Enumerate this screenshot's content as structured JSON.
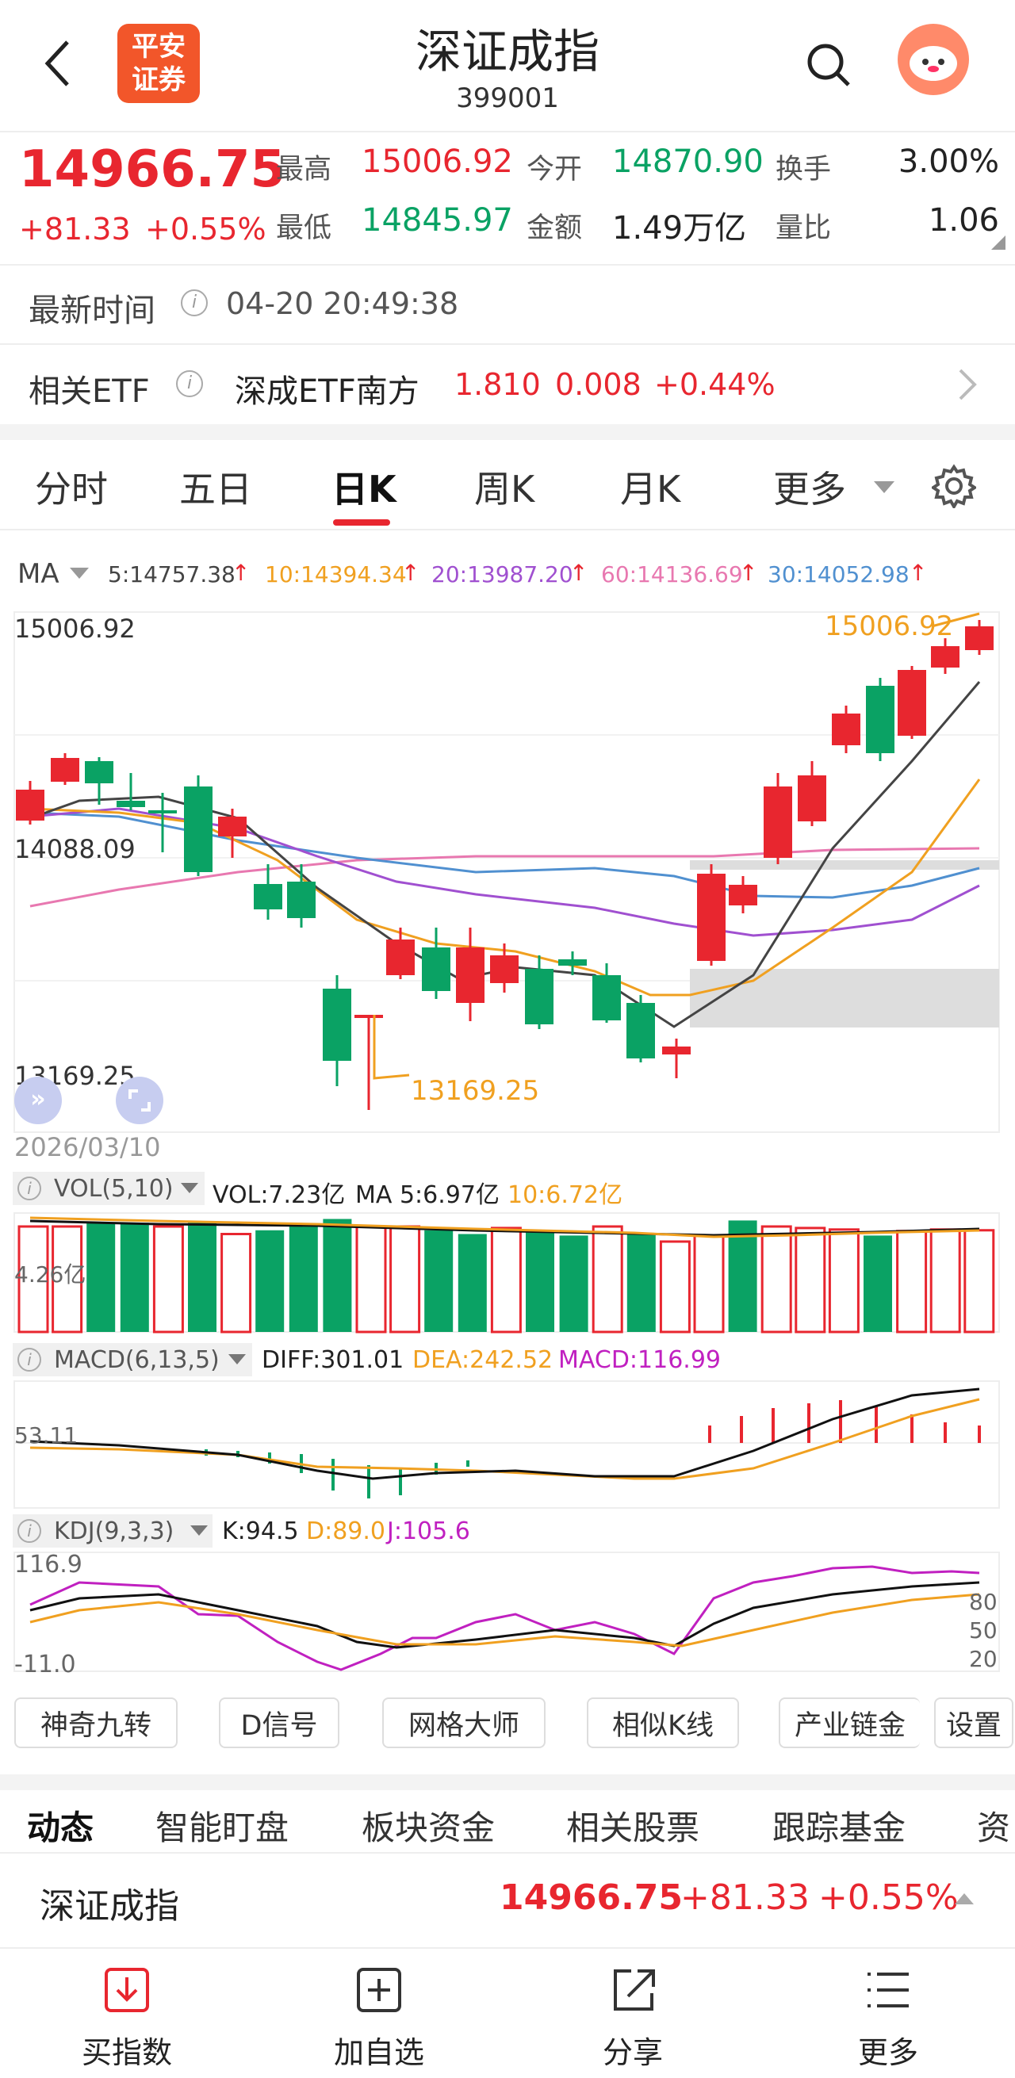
{
  "header": {
    "logo_text": "平安\n证券",
    "title": "深证成指",
    "code": "399001",
    "back_icon": "back-arrow-icon",
    "search_icon": "search-icon",
    "avatar_icon": "mascot-avatar"
  },
  "quote": {
    "price": "14966.75",
    "change": "+81.33",
    "change_pct": "+0.55%",
    "high_label": "最高",
    "high": "15006.92",
    "open_label": "今开",
    "open": "14870.90",
    "turnover_label": "换手",
    "turnover": "3.00%",
    "low_label": "最低",
    "low": "14845.97",
    "amount_label": "金额",
    "amount": "1.49万亿",
    "volratio_label": "量比",
    "volratio": "1.06"
  },
  "time_row": {
    "label": "最新时间",
    "value": "04-20 20:49:38"
  },
  "etf_row": {
    "label": "相关ETF",
    "name": "深成ETF南方",
    "price": "1.810",
    "change": "0.008",
    "pct": "+0.44%"
  },
  "tabs": [
    "分时",
    "五日",
    "日K",
    "周K",
    "月K",
    "更多"
  ],
  "active_tab": "日K",
  "ma_legend": {
    "label": "MA",
    "ma5": "5:14757.38",
    "ma10": "10:14394.34",
    "ma20": "20:13987.20",
    "ma60": "60:14136.69",
    "ma30": "30:14052.98",
    "colors": {
      "ma5": "#444444",
      "ma10": "#f0a020",
      "ma20": "#a050d0",
      "ma60": "#e878b0",
      "ma30": "#5090d0"
    }
  },
  "kchart": {
    "top_label": "15006.92",
    "mid_label": "14088.09",
    "bot_label": "13169.25",
    "max_marker": "15006.92",
    "min_marker": "13169.25",
    "date_label": "2026/03/10"
  },
  "vol": {
    "label": "VOL(5,10)",
    "value": "VOL:7.23亿",
    "ma5": "MA 5:6.97亿",
    "ma10": "10:6.72亿",
    "axis": "4.26亿"
  },
  "macd": {
    "label": "MACD(6,13,5)",
    "diff": "DIFF:301.01",
    "dea": "DEA:242.52",
    "macd": "MACD:116.99",
    "axis": "53.11"
  },
  "kdj": {
    "label": "KDJ(9,3,3)",
    "k": "K:94.5",
    "d": "D:89.0",
    "j": "J:105.6",
    "axis_top": "116.9",
    "axis_bot": "-11.0",
    "levels": [
      "80",
      "50",
      "20"
    ]
  },
  "tool_buttons": [
    "神奇九转",
    "D信号",
    "网格大师",
    "相似K线",
    "产业链金",
    "设置"
  ],
  "section_tabs": [
    "动态",
    "智能盯盘",
    "板块资金",
    "相关股票",
    "跟踪基金",
    "资"
  ],
  "footer_quote": {
    "name": "深证成指",
    "price": "14966.75",
    "change": "+81.33",
    "pct": "+0.55%"
  },
  "bottom_nav": [
    {
      "label": "买指数",
      "icon": "download-icon"
    },
    {
      "label": "加自选",
      "icon": "add-icon"
    },
    {
      "label": "分享",
      "icon": "share-icon"
    },
    {
      "label": "更多",
      "icon": "menu-icon"
    }
  ]
}
